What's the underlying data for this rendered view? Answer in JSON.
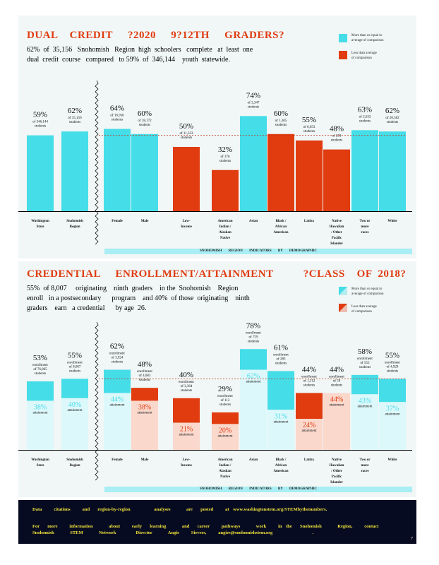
{
  "legend": {
    "above": "More than or equal to\naverage of comparison",
    "below": "Less than average\nof comparison",
    "colors": {
      "above": "#45dde8",
      "below": "#e03c10",
      "above_light": "#ddf8fb",
      "below_light": "#fad8cc"
    }
  },
  "section1": {
    "title": "DUAL    CREDIT     ?2020     9?12TH     GRADERS?",
    "summary_line1": "62%  of  35,156   Snohomish   Region  high  schoolers   complete   at  least  one",
    "summary_line2": "dual  credit  course   compared   to 59%  of  346,144    youth  statewide.",
    "caption": "SNOHOMISH    REGION    INDICATORS    BY DEMOGRAPHIC"
  },
  "section2": {
    "title": "CREDENTIAL     ENROLLMENT/ATTAINMENT          ?CLASS    OF  2018?",
    "summary_line1": "55%  of 8,007     originating    ninth  graders    in the  Snohomish    Region",
    "summary_line2": "enroll   in a postsecondary      program    and 40%  of those  originating    ninth",
    "summary_line3": "graders    earn   a credential      by age  26.",
    "caption": "SNOHOMISH    REGION    INDICATORS    BY DEMOGRAPHIC"
  },
  "chart_data": [
    {
      "type": "bar",
      "title": "DUAL CREDIT ?2020 9?12TH GRADERS?",
      "ylim": [
        0,
        100
      ],
      "reference_line": 59,
      "categories": [
        "Washington State",
        "Snohomish Region",
        "Female",
        "Male",
        "Low-Income",
        "American Indian / Alaskan Native",
        "Asian",
        "Black / African American",
        "Latinx",
        "Native Hawaiian / Other Pacific Islander",
        "Two or more races",
        "White"
      ],
      "category_lines": [
        [
          "Washington",
          "State"
        ],
        [
          "Snohomish",
          "Region"
        ],
        [
          "Female"
        ],
        [
          "Male"
        ],
        [
          "Low-",
          "Income"
        ],
        [
          "American",
          "Indian  /",
          "Alaskan",
          "Native"
        ],
        [
          "Asian"
        ],
        [
          "Black  /",
          "African",
          "American"
        ],
        [
          "Latinx"
        ],
        [
          "Native",
          "Hawaiian",
          "/ Other",
          "Pacific",
          "Islander"
        ],
        [
          "Two   or",
          "more",
          "races"
        ],
        [
          "White"
        ]
      ],
      "values": [
        59,
        62,
        64,
        60,
        50,
        32,
        74,
        60,
        55,
        48,
        63,
        62
      ],
      "labels": [
        "59%",
        "62%",
        "64%",
        "60%",
        "50%",
        "32%",
        "74%",
        "60%",
        "55%",
        "48%",
        "63%",
        "62%"
      ],
      "sublabels": [
        [
          "of  346,144",
          "students"
        ],
        [
          "of  35,156",
          "students"
        ],
        [
          "of  16,956",
          "students"
        ],
        [
          "of  18,172",
          "students"
        ],
        [
          "of  11,333",
          "students"
        ],
        [
          "of  376",
          "students"
        ],
        [
          "of  3,347",
          "students"
        ],
        [
          "of  1,305",
          "students"
        ],
        [
          "of  6,653",
          "students"
        ],
        [
          "of  281",
          "students"
        ],
        [
          "of  2,632",
          "students"
        ],
        [
          "of  20,582",
          "students"
        ]
      ],
      "status": [
        "above",
        "above",
        "above",
        "above",
        "below",
        "below",
        "above",
        "below",
        "below",
        "below",
        "above",
        "above"
      ]
    },
    {
      "type": "bar",
      "title": "CREDENTIAL ENROLLMENT/ATTAINMENT ?CLASS OF 2018?",
      "ylim": [
        0,
        100
      ],
      "reference_line": 55,
      "categories": [
        "Washington State",
        "Snohomish Region",
        "Female",
        "Male",
        "Low-Income",
        "American Indian / Alaskan Native",
        "Asian",
        "Black / African American",
        "Latinx",
        "Native Hawaiian / Other Pacific Islander",
        "Two or more races",
        "White"
      ],
      "category_lines": [
        [
          "Washington",
          "State"
        ],
        [
          "Snohomish",
          "Region"
        ],
        [
          "Female"
        ],
        [
          "Male"
        ],
        [
          "Low-",
          "Income"
        ],
        [
          "American",
          "Indian  /",
          "Alaskan",
          "Native"
        ],
        [
          "Asian"
        ],
        [
          "Black  /",
          "African",
          "American"
        ],
        [
          "Latinx"
        ],
        [
          "Native",
          "Hawaiian",
          "/ Other",
          "Pacific",
          "Islander"
        ],
        [
          "Two   or",
          "more",
          "races"
        ],
        [
          "White"
        ]
      ],
      "series": [
        {
          "name": "enrollment",
          "values": [
            53,
            55,
            62,
            48,
            40,
            29,
            78,
            61,
            44,
            44,
            58,
            55
          ],
          "labels": [
            "53%",
            "55%",
            "62%",
            "48%",
            "40%",
            "29%",
            "78%",
            "61%",
            "44%",
            "44%",
            "58%",
            "55%"
          ],
          "sublabels": [
            [
              "enrollment",
              "of  76,865",
              "students"
            ],
            [
              "enrollment",
              "of  8,007",
              "students"
            ],
            [
              "enrollment",
              "of  3,924",
              "students"
            ],
            [
              "enrollment",
              "of  4,083",
              "students"
            ],
            [
              "enrollment",
              "of  3,364",
              "students"
            ],
            [
              "enrollment",
              "of  112",
              "students"
            ],
            [
              "enrollment",
              "of  759",
              "students"
            ],
            [
              "enrollment",
              "of  283",
              "students"
            ],
            [
              "enrollment",
              "of  1,312",
              "students"
            ],
            [
              "enrollment",
              "of  59",
              "students"
            ],
            [
              "enrollment",
              "of  553",
              "students"
            ],
            [
              "enrollment",
              "of  4,929",
              "students"
            ]
          ],
          "status": [
            "above",
            "above",
            "above",
            "below",
            "below",
            "below",
            "above",
            "above",
            "below",
            "below",
            "above",
            "above"
          ]
        },
        {
          "name": "attainment",
          "values": [
            38,
            40,
            44,
            38,
            21,
            20,
            62,
            31,
            24,
            44,
            43,
            37
          ],
          "labels": [
            "38%",
            "40%",
            "44%",
            "38%",
            "21%",
            "20%",
            "62%",
            "31%",
            "24%",
            "44%",
            "43%",
            "37%"
          ],
          "sublabel": "attainment"
        }
      ]
    }
  ],
  "footer": {
    "line1": "Data   citations   and  region-by-region      analyses    are  posted   at www.washingtonstem.org/STEMbythenumbers.",
    "line2": "For  more   information    about   early  learning    and  career   pathways    work   in the  Snohomish    Region,   contact",
    "line3": "Snohomish    STEM    Network     Director    Angie   Sievers,   angies@snohomishstem.org          .",
    "page_number": "7"
  }
}
